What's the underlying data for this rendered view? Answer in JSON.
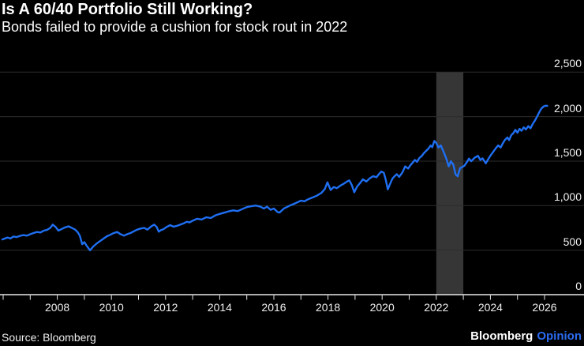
{
  "header": {
    "title": "Is A 60/40 Portfolio Still Working?",
    "subtitle": "Bonds failed to provide a cushion for stock rout in 2022"
  },
  "footer": {
    "source": "Source: Bloomberg",
    "brand_name": "Bloomberg",
    "brand_suffix": "Opinion",
    "brand_suffix_color": "#2b6cf0"
  },
  "chart_data": {
    "type": "line",
    "title": "Is A 60/40 Portfolio Still Working?",
    "subtitle": "Bonds failed to provide a cushion for stock rout in 2022",
    "xlabel": "",
    "ylabel": "",
    "xlim": [
      2005.9,
      2027.5
    ],
    "ylim": [
      0,
      2550
    ],
    "grid": true,
    "legend": "none",
    "x_tick_years": [
      2006,
      2007,
      2008,
      2009,
      2010,
      2011,
      2012,
      2013,
      2014,
      2015,
      2016,
      2017,
      2018,
      2019,
      2020,
      2021,
      2022,
      2023,
      2024,
      2025,
      2026
    ],
    "x_label_years": [
      2008,
      2010,
      2012,
      2014,
      2016,
      2018,
      2020,
      2022,
      2024,
      2026
    ],
    "y_ticks": [
      0,
      500,
      1000,
      1500,
      2000,
      2500
    ],
    "y_tick_labels": [
      "0",
      "500",
      "1,000",
      "1,500",
      "2,000",
      "2,500"
    ],
    "highlight_band": {
      "from": 2022,
      "to": 2023,
      "color": "#363636"
    },
    "colors": {
      "background": "#000000",
      "grid": "#2c2c2c",
      "axis": "#e8e8e8",
      "line": "#1f6ff2",
      "text": "#ffffff"
    },
    "series": [
      {
        "name": "60-40-portfolio-index",
        "points": [
          [
            2005.97,
            620
          ],
          [
            2006.08,
            633
          ],
          [
            2006.17,
            642
          ],
          [
            2006.27,
            631
          ],
          [
            2006.38,
            653
          ],
          [
            2006.5,
            647
          ],
          [
            2006.63,
            661
          ],
          [
            2006.75,
            669
          ],
          [
            2006.88,
            663
          ],
          [
            2007.0,
            679
          ],
          [
            2007.13,
            693
          ],
          [
            2007.25,
            704
          ],
          [
            2007.38,
            698
          ],
          [
            2007.5,
            719
          ],
          [
            2007.63,
            729
          ],
          [
            2007.75,
            753
          ],
          [
            2007.83,
            787
          ],
          [
            2007.94,
            761
          ],
          [
            2008.04,
            720
          ],
          [
            2008.17,
            738
          ],
          [
            2008.29,
            756
          ],
          [
            2008.42,
            768
          ],
          [
            2008.54,
            749
          ],
          [
            2008.65,
            733
          ],
          [
            2008.75,
            703
          ],
          [
            2008.83,
            663
          ],
          [
            2008.92,
            566
          ],
          [
            2009.0,
            590
          ],
          [
            2009.08,
            552
          ],
          [
            2009.21,
            498
          ],
          [
            2009.33,
            541
          ],
          [
            2009.46,
            576
          ],
          [
            2009.58,
            602
          ],
          [
            2009.71,
            630
          ],
          [
            2009.83,
            656
          ],
          [
            2009.96,
            673
          ],
          [
            2010.08,
            691
          ],
          [
            2010.21,
            704
          ],
          [
            2010.33,
            681
          ],
          [
            2010.46,
            663
          ],
          [
            2010.58,
            679
          ],
          [
            2010.71,
            693
          ],
          [
            2010.83,
            713
          ],
          [
            2010.96,
            731
          ],
          [
            2011.08,
            743
          ],
          [
            2011.21,
            750
          ],
          [
            2011.33,
            730
          ],
          [
            2011.46,
            765
          ],
          [
            2011.58,
            787
          ],
          [
            2011.67,
            761
          ],
          [
            2011.75,
            707
          ],
          [
            2011.83,
            726
          ],
          [
            2011.92,
            736
          ],
          [
            2012.04,
            761
          ],
          [
            2012.17,
            781
          ],
          [
            2012.29,
            764
          ],
          [
            2012.42,
            773
          ],
          [
            2012.54,
            786
          ],
          [
            2012.67,
            801
          ],
          [
            2012.79,
            819
          ],
          [
            2012.88,
            811
          ],
          [
            2013.0,
            831
          ],
          [
            2013.17,
            853
          ],
          [
            2013.33,
            844
          ],
          [
            2013.5,
            869
          ],
          [
            2013.67,
            861
          ],
          [
            2013.83,
            889
          ],
          [
            2014.0,
            907
          ],
          [
            2014.17,
            921
          ],
          [
            2014.33,
            935
          ],
          [
            2014.5,
            947
          ],
          [
            2014.67,
            939
          ],
          [
            2014.83,
            961
          ],
          [
            2015.0,
            983
          ],
          [
            2015.17,
            994
          ],
          [
            2015.33,
            1001
          ],
          [
            2015.5,
            989
          ],
          [
            2015.63,
            967
          ],
          [
            2015.75,
            989
          ],
          [
            2015.88,
            953
          ],
          [
            2016.0,
            967
          ],
          [
            2016.13,
            929
          ],
          [
            2016.21,
            922
          ],
          [
            2016.38,
            969
          ],
          [
            2016.5,
            987
          ],
          [
            2016.63,
            1006
          ],
          [
            2016.75,
            1021
          ],
          [
            2016.88,
            1039
          ],
          [
            2017.0,
            1056
          ],
          [
            2017.13,
            1049
          ],
          [
            2017.25,
            1069
          ],
          [
            2017.42,
            1091
          ],
          [
            2017.58,
            1111
          ],
          [
            2017.75,
            1141
          ],
          [
            2017.88,
            1186
          ],
          [
            2017.98,
            1261
          ],
          [
            2018.1,
            1176
          ],
          [
            2018.21,
            1209
          ],
          [
            2018.33,
            1196
          ],
          [
            2018.46,
            1226
          ],
          [
            2018.58,
            1246
          ],
          [
            2018.71,
            1273
          ],
          [
            2018.79,
            1283
          ],
          [
            2018.88,
            1231
          ],
          [
            2018.97,
            1150
          ],
          [
            2019.08,
            1216
          ],
          [
            2019.21,
            1263
          ],
          [
            2019.29,
            1296
          ],
          [
            2019.42,
            1271
          ],
          [
            2019.54,
            1306
          ],
          [
            2019.67,
            1331
          ],
          [
            2019.79,
            1319
          ],
          [
            2019.88,
            1353
          ],
          [
            2019.97,
            1383
          ],
          [
            2020.06,
            1369
          ],
          [
            2020.13,
            1295
          ],
          [
            2020.21,
            1183
          ],
          [
            2020.29,
            1241
          ],
          [
            2020.38,
            1303
          ],
          [
            2020.46,
            1331
          ],
          [
            2020.54,
            1353
          ],
          [
            2020.63,
            1323
          ],
          [
            2020.75,
            1373
          ],
          [
            2020.85,
            1441
          ],
          [
            2020.96,
            1416
          ],
          [
            2021.04,
            1453
          ],
          [
            2021.13,
            1484
          ],
          [
            2021.21,
            1513
          ],
          [
            2021.29,
            1493
          ],
          [
            2021.38,
            1536
          ],
          [
            2021.46,
            1557
          ],
          [
            2021.54,
            1589
          ],
          [
            2021.63,
            1616
          ],
          [
            2021.71,
            1641
          ],
          [
            2021.79,
            1675
          ],
          [
            2021.85,
            1657
          ],
          [
            2021.93,
            1727
          ],
          [
            2022.0,
            1705
          ],
          [
            2022.08,
            1653
          ],
          [
            2022.17,
            1676
          ],
          [
            2022.29,
            1591
          ],
          [
            2022.38,
            1521
          ],
          [
            2022.46,
            1441
          ],
          [
            2022.54,
            1499
          ],
          [
            2022.63,
            1461
          ],
          [
            2022.71,
            1353
          ],
          [
            2022.79,
            1329
          ],
          [
            2022.88,
            1421
          ],
          [
            2022.96,
            1433
          ],
          [
            2023.04,
            1449
          ],
          [
            2023.13,
            1489
          ],
          [
            2023.21,
            1529
          ],
          [
            2023.29,
            1499
          ],
          [
            2023.42,
            1539
          ],
          [
            2023.54,
            1559
          ],
          [
            2023.63,
            1513
          ],
          [
            2023.71,
            1531
          ],
          [
            2023.83,
            1476
          ],
          [
            2023.92,
            1523
          ],
          [
            2024.0,
            1561
          ],
          [
            2024.13,
            1616
          ],
          [
            2024.21,
            1649
          ],
          [
            2024.29,
            1676
          ],
          [
            2024.38,
            1653
          ],
          [
            2024.46,
            1701
          ],
          [
            2024.54,
            1739
          ],
          [
            2024.63,
            1766
          ],
          [
            2024.69,
            1736
          ],
          [
            2024.77,
            1791
          ],
          [
            2024.85,
            1816
          ],
          [
            2024.92,
            1851
          ],
          [
            2025.0,
            1819
          ],
          [
            2025.08,
            1863
          ],
          [
            2025.15,
            1841
          ],
          [
            2025.23,
            1879
          ],
          [
            2025.31,
            1856
          ],
          [
            2025.4,
            1893
          ],
          [
            2025.48,
            1869
          ],
          [
            2025.56,
            1916
          ],
          [
            2025.65,
            1959
          ],
          [
            2025.73,
            2003
          ],
          [
            2025.81,
            2053
          ],
          [
            2025.88,
            2089
          ],
          [
            2025.96,
            2113
          ],
          [
            2026.04,
            2123
          ],
          [
            2026.1,
            2121
          ]
        ]
      }
    ]
  }
}
